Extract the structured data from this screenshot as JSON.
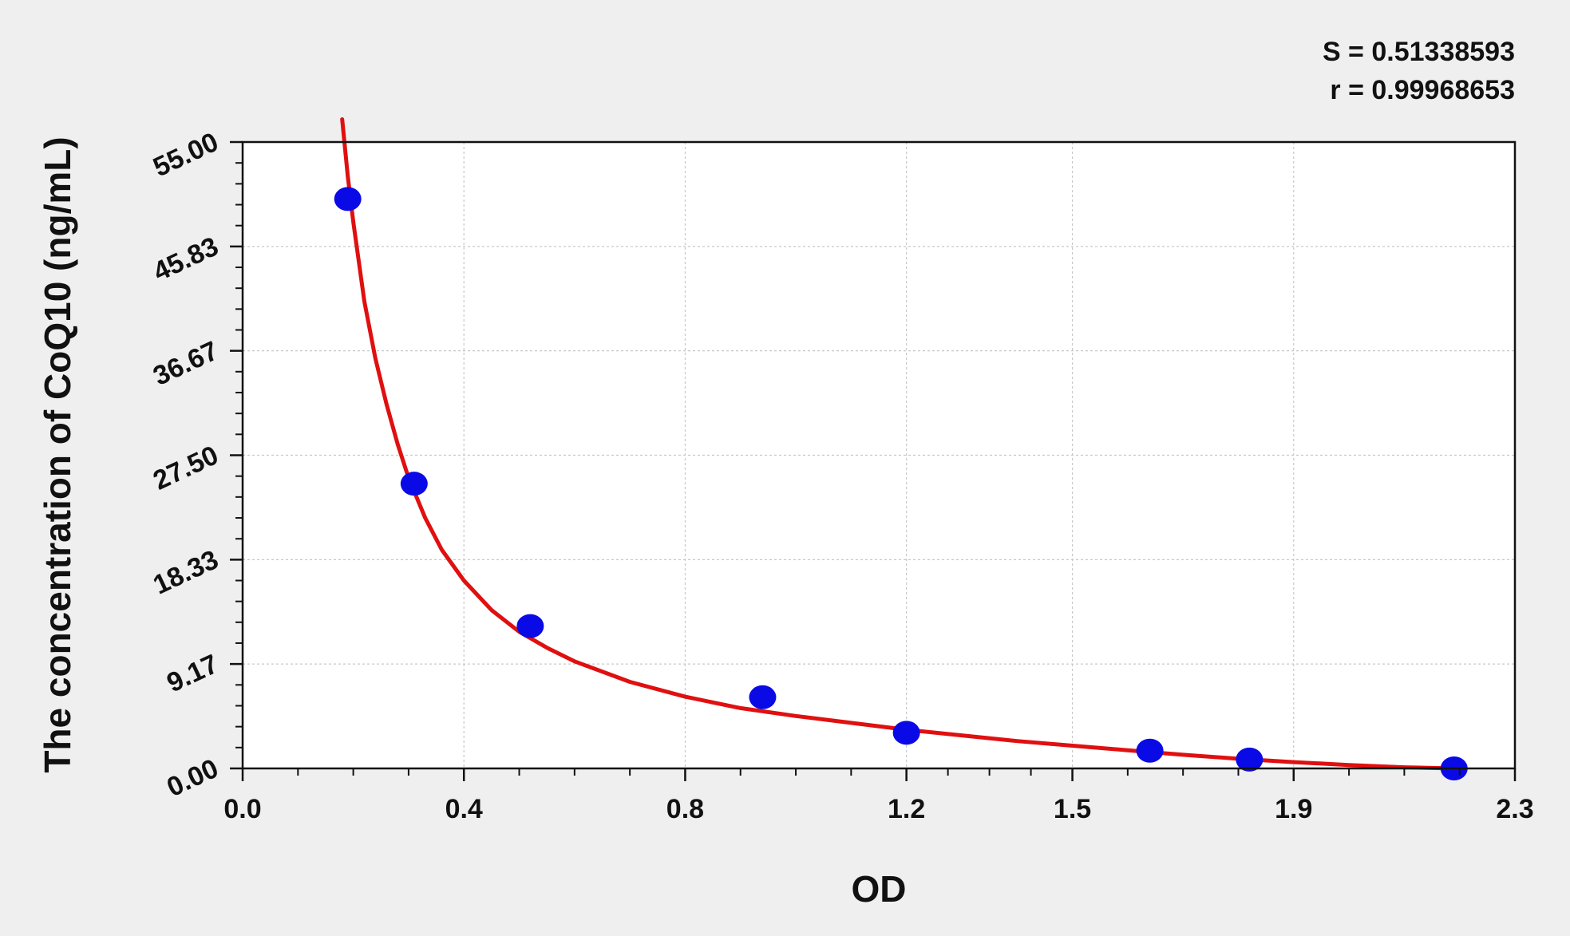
{
  "chart_data": {
    "type": "scatter",
    "xlabel": "OD",
    "ylabel": "The concentration of  CoQ10 (ng/mL)",
    "xlim": [
      0.0,
      2.3
    ],
    "ylim": [
      0.0,
      55.0
    ],
    "x_ticks": [
      0.0,
      0.4,
      0.8,
      1.2,
      1.5,
      1.9,
      2.3
    ],
    "x_tick_labels": [
      "0.0",
      "0.4",
      "0.8",
      "1.2",
      "1.5",
      "1.9",
      "2.3"
    ],
    "y_ticks": [
      0.0,
      9.17,
      18.33,
      27.5,
      36.67,
      45.83,
      55.0
    ],
    "y_tick_labels": [
      "0.00",
      "9.17",
      "18.33",
      "27.50",
      "36.67",
      "45.83",
      "55.00"
    ],
    "grid": true,
    "annotations": [
      "S = 0.51338593",
      "r = 0.99968653"
    ],
    "colors": {
      "points": "#0a0ae6",
      "curve": "#e01010",
      "plot_bg": "#ffffff",
      "grid": "#c8c8c8"
    },
    "series": [
      {
        "type": "scatter",
        "x": [
          0.19,
          0.31,
          0.52,
          0.94,
          1.2,
          1.64,
          1.82,
          2.19
        ],
        "y": [
          50.0,
          25.0,
          12.5,
          6.25,
          3.13,
          1.56,
          0.78,
          0.0
        ]
      },
      {
        "type": "line",
        "x": [
          0.18,
          0.19,
          0.2,
          0.22,
          0.24,
          0.26,
          0.28,
          0.3,
          0.33,
          0.36,
          0.4,
          0.45,
          0.5,
          0.55,
          0.6,
          0.7,
          0.8,
          0.9,
          1.0,
          1.1,
          1.2,
          1.3,
          1.4,
          1.5,
          1.6,
          1.7,
          1.8,
          1.9,
          2.0,
          2.1,
          2.19
        ],
        "y": [
          57.0,
          52.0,
          48.0,
          41.0,
          36.0,
          32.0,
          28.5,
          25.5,
          22.0,
          19.2,
          16.5,
          13.9,
          12.0,
          10.6,
          9.4,
          7.6,
          6.3,
          5.3,
          4.6,
          4.0,
          3.4,
          2.9,
          2.4,
          2.0,
          1.6,
          1.2,
          0.85,
          0.55,
          0.3,
          0.1,
          0.0
        ]
      }
    ]
  }
}
